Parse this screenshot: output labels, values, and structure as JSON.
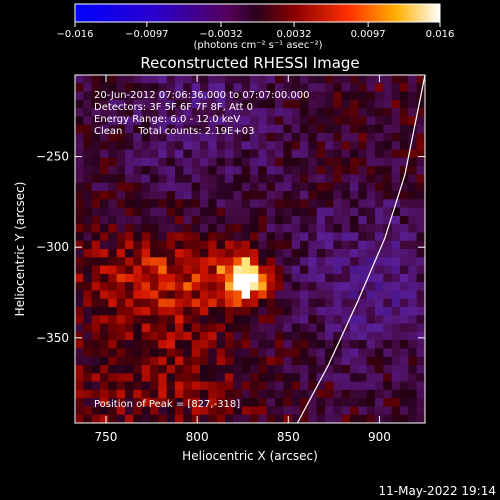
{
  "chart_data": {
    "type": "heatmap",
    "title": "Reconstructed RHESSI Image",
    "xlabel": "Heliocentric X (arcsec)",
    "ylabel": "Heliocentric Y (arcsec)",
    "xlim": [
      733,
      925
    ],
    "ylim": [
      -397,
      -205
    ],
    "x_ticks": [
      750,
      800,
      850,
      900
    ],
    "y_ticks": [
      -250,
      -300,
      -350
    ],
    "x_tick_labels": [
      "750",
      "800",
      "850",
      "900"
    ],
    "y_tick_labels": [
      "−250",
      "−300",
      "−350"
    ],
    "colorbar": {
      "range": [
        -0.016,
        0.016
      ],
      "ticks": [
        -0.016,
        -0.0097,
        -0.0032,
        0.0032,
        0.0097,
        0.016
      ],
      "tick_labels": [
        "−0.016",
        "−0.0097",
        "−0.0032",
        "0.0032",
        "0.0097",
        "0.016"
      ],
      "label": "(photons cm⁻² s⁻¹ asec⁻²)"
    },
    "annotations": [
      "20-Jun-2012 07:06:36.000 to 07:07:00.000",
      "Detectors: 3F 5F 6F 7F 8F, Att 0",
      "Energy Range: 6.0 - 12.0 keV",
      "Clean     Total counts: 2.19E+03"
    ],
    "peak": {
      "x": 827,
      "y": -318,
      "label": "Position of Peak = [827,-318]"
    },
    "limb_curve": [
      [
        855,
        -397
      ],
      [
        872,
        -365
      ],
      [
        888,
        -330
      ],
      [
        903,
        -295
      ],
      [
        914,
        -260
      ],
      [
        925,
        -205
      ]
    ]
  },
  "footer": {
    "timestamp": "11-May-2022 19:14"
  }
}
